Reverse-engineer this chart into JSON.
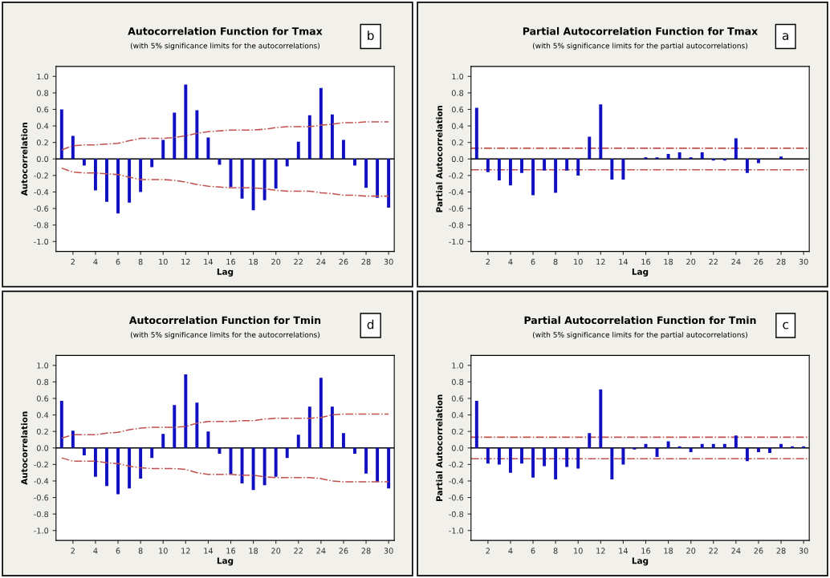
{
  "chart_data": [
    {
      "type": "bar",
      "title": "Autocorrelation Function for Tmax",
      "subtitle": "(with 5% significance limits for the autocorrelations)",
      "xlabel": "Lag",
      "ylabel": "Autocorrelation",
      "annotations": [
        "b"
      ],
      "x": [
        1,
        2,
        3,
        4,
        5,
        6,
        7,
        8,
        9,
        10,
        11,
        12,
        13,
        14,
        15,
        16,
        17,
        18,
        19,
        20,
        21,
        22,
        23,
        24,
        25,
        26,
        27,
        28,
        29,
        30
      ],
      "series": [
        {
          "color": "#1010c0",
          "values": [
            0.6,
            0.28,
            -0.08,
            -0.38,
            -0.52,
            -0.66,
            -0.53,
            -0.4,
            -0.1,
            0.23,
            0.56,
            0.9,
            0.59,
            0.26,
            -0.07,
            -0.34,
            -0.48,
            -0.62,
            -0.5,
            -0.36,
            -0.09,
            0.21,
            0.53,
            0.86,
            0.54,
            0.23,
            -0.08,
            -0.35,
            -0.47,
            -0.59
          ]
        },
        {
          "type": "line",
          "color": "#c0504d",
          "line_style": "dashdot",
          "values": [
            0.11,
            0.16,
            0.17,
            0.17,
            0.18,
            0.19,
            0.22,
            0.25,
            0.25,
            0.25,
            0.26,
            0.28,
            0.31,
            0.33,
            0.34,
            0.35,
            0.35,
            0.35,
            0.36,
            0.38,
            0.39,
            0.39,
            0.39,
            0.41,
            0.42,
            0.44,
            0.44,
            0.45,
            0.45,
            0.45
          ]
        },
        {
          "type": "line",
          "color": "#c0504d",
          "line_style": "dashdot",
          "values": [
            -0.11,
            -0.16,
            -0.17,
            -0.17,
            -0.18,
            -0.19,
            -0.22,
            -0.25,
            -0.25,
            -0.25,
            -0.26,
            -0.28,
            -0.31,
            -0.33,
            -0.34,
            -0.35,
            -0.35,
            -0.35,
            -0.36,
            -0.38,
            -0.39,
            -0.39,
            -0.39,
            -0.41,
            -0.42,
            -0.44,
            -0.44,
            -0.45,
            -0.45,
            -0.45
          ]
        }
      ],
      "ref_lines": [
        {
          "axis": "y",
          "value": 0,
          "color": "#000000",
          "line_style": "solid"
        }
      ],
      "xlim": [
        0.5,
        30.5
      ],
      "xticks": [
        2,
        4,
        6,
        8,
        10,
        12,
        14,
        16,
        18,
        20,
        22,
        24,
        26,
        28,
        30
      ],
      "ylim": [
        -1.12,
        1.12
      ],
      "yticks": [
        {
          "value": -1,
          "label": "-1.0"
        },
        -0.8,
        -0.6,
        -0.4,
        -0.2,
        {
          "value": 0,
          "label": "0.0"
        },
        0.2,
        0.4,
        0.6,
        0.8,
        {
          "value": 1,
          "label": "1.0"
        }
      ]
    },
    {
      "type": "bar",
      "title": "Partial Autocorrelation Function for Tmax",
      "subtitle": "(with 5% significance limits for the partial autocorrelations)",
      "xlabel": "Lag",
      "ylabel": "Partial Autocorrelation",
      "annotations": [
        "a"
      ],
      "x": [
        1,
        2,
        3,
        4,
        5,
        6,
        7,
        8,
        9,
        10,
        11,
        12,
        13,
        14,
        15,
        16,
        17,
        18,
        19,
        20,
        21,
        22,
        23,
        24,
        25,
        26,
        27,
        28,
        29,
        30
      ],
      "series": [
        {
          "color": "#1010c0",
          "values": [
            0.62,
            -0.16,
            -0.26,
            -0.32,
            -0.17,
            -0.44,
            -0.14,
            -0.41,
            -0.14,
            -0.2,
            0.27,
            0.66,
            -0.25,
            -0.25,
            0.0,
            0.02,
            0.02,
            0.06,
            0.08,
            0.02,
            0.08,
            -0.02,
            -0.02,
            0.25,
            -0.17,
            -0.05,
            0.0,
            0.03,
            0.0,
            0.0
          ]
        }
      ],
      "ref_lines": [
        {
          "axis": "y",
          "value": 0,
          "color": "#000000",
          "line_style": "solid"
        },
        {
          "axis": "y",
          "value": 0.13,
          "color": "#c0504d",
          "line_style": "dashdot"
        },
        {
          "axis": "y",
          "value": -0.13,
          "color": "#c0504d",
          "line_style": "dashdot"
        }
      ],
      "xlim": [
        0.5,
        30.5
      ],
      "xticks": [
        2,
        4,
        6,
        8,
        10,
        12,
        14,
        16,
        18,
        20,
        22,
        24,
        26,
        28,
        30
      ],
      "ylim": [
        -1.12,
        1.12
      ],
      "yticks": [
        {
          "value": -1,
          "label": "-1.0"
        },
        -0.8,
        -0.6,
        -0.4,
        -0.2,
        {
          "value": 0,
          "label": "0.0"
        },
        0.2,
        0.4,
        0.6,
        0.8,
        {
          "value": 1,
          "label": "1.0"
        }
      ]
    },
    {
      "type": "bar",
      "title": "Autocorrelation Function for Tmin",
      "subtitle": "(with 5% significance limits for the autocorrelations)",
      "xlabel": "Lag",
      "ylabel": "Autocorrelation",
      "annotations": [
        "d"
      ],
      "x": [
        1,
        2,
        3,
        4,
        5,
        6,
        7,
        8,
        9,
        10,
        11,
        12,
        13,
        14,
        15,
        16,
        17,
        18,
        19,
        20,
        21,
        22,
        23,
        24,
        25,
        26,
        27,
        28,
        29,
        30
      ],
      "series": [
        {
          "color": "#1010c0",
          "values": [
            0.57,
            0.21,
            -0.09,
            -0.35,
            -0.46,
            -0.56,
            -0.49,
            -0.37,
            -0.12,
            0.17,
            0.52,
            0.89,
            0.55,
            0.2,
            -0.07,
            -0.32,
            -0.43,
            -0.51,
            -0.45,
            -0.35,
            -0.12,
            0.16,
            0.5,
            0.85,
            0.5,
            0.18,
            -0.07,
            -0.31,
            -0.41,
            -0.49
          ]
        },
        {
          "type": "line",
          "color": "#c0504d",
          "line_style": "dashdot",
          "values": [
            0.12,
            0.16,
            0.16,
            0.16,
            0.18,
            0.19,
            0.22,
            0.24,
            0.25,
            0.25,
            0.25,
            0.26,
            0.3,
            0.32,
            0.32,
            0.32,
            0.33,
            0.33,
            0.35,
            0.36,
            0.36,
            0.36,
            0.36,
            0.37,
            0.4,
            0.41,
            0.41,
            0.41,
            0.41,
            0.41
          ]
        },
        {
          "type": "line",
          "color": "#c0504d",
          "line_style": "dashdot",
          "values": [
            -0.12,
            -0.16,
            -0.16,
            -0.16,
            -0.18,
            -0.19,
            -0.22,
            -0.24,
            -0.25,
            -0.25,
            -0.25,
            -0.26,
            -0.3,
            -0.32,
            -0.32,
            -0.32,
            -0.33,
            -0.33,
            -0.35,
            -0.36,
            -0.36,
            -0.36,
            -0.36,
            -0.37,
            -0.4,
            -0.41,
            -0.41,
            -0.41,
            -0.41,
            -0.41
          ]
        }
      ],
      "ref_lines": [
        {
          "axis": "y",
          "value": 0,
          "color": "#000000",
          "line_style": "solid"
        }
      ],
      "xlim": [
        0.5,
        30.5
      ],
      "xticks": [
        2,
        4,
        6,
        8,
        10,
        12,
        14,
        16,
        18,
        20,
        22,
        24,
        26,
        28,
        30
      ],
      "ylim": [
        -1.12,
        1.12
      ],
      "yticks": [
        {
          "value": -1,
          "label": "-1.0"
        },
        -0.8,
        -0.6,
        -0.4,
        -0.2,
        {
          "value": 0,
          "label": "0.0"
        },
        0.2,
        0.4,
        0.6,
        0.8,
        {
          "value": 1,
          "label": "1.0"
        }
      ]
    },
    {
      "type": "bar",
      "title": "Partial Autocorrelation Function for Tmin",
      "subtitle": "(with 5% significance limits for the partial autocorrelations)",
      "xlabel": "Lag",
      "ylabel": "Partial Autocorrelation",
      "annotations": [
        "c"
      ],
      "x": [
        1,
        2,
        3,
        4,
        5,
        6,
        7,
        8,
        9,
        10,
        11,
        12,
        13,
        14,
        15,
        16,
        17,
        18,
        19,
        20,
        21,
        22,
        23,
        24,
        25,
        26,
        27,
        28,
        29,
        30
      ],
      "series": [
        {
          "color": "#1010c0",
          "values": [
            0.57,
            -0.19,
            -0.2,
            -0.3,
            -0.19,
            -0.36,
            -0.22,
            -0.38,
            -0.23,
            -0.25,
            0.18,
            0.71,
            -0.38,
            -0.2,
            -0.02,
            0.05,
            -0.11,
            0.08,
            0.02,
            -0.05,
            0.05,
            0.05,
            0.05,
            0.15,
            -0.16,
            -0.05,
            -0.06,
            0.05,
            0.02,
            0.02
          ]
        }
      ],
      "ref_lines": [
        {
          "axis": "y",
          "value": 0,
          "color": "#000000",
          "line_style": "solid"
        },
        {
          "axis": "y",
          "value": 0.13,
          "color": "#c0504d",
          "line_style": "dashdot"
        },
        {
          "axis": "y",
          "value": -0.13,
          "color": "#c0504d",
          "line_style": "dashdot"
        }
      ],
      "xlim": [
        0.5,
        30.5
      ],
      "xticks": [
        2,
        4,
        6,
        8,
        10,
        12,
        14,
        16,
        18,
        20,
        22,
        24,
        26,
        28,
        30
      ],
      "ylim": [
        -1.12,
        1.12
      ],
      "yticks": [
        {
          "value": -1,
          "label": "-1.0"
        },
        -0.8,
        -0.6,
        -0.4,
        -0.2,
        {
          "value": 0,
          "label": "0.0"
        },
        0.2,
        0.4,
        0.6,
        0.8,
        {
          "value": 1,
          "label": "1.0"
        }
      ]
    }
  ]
}
